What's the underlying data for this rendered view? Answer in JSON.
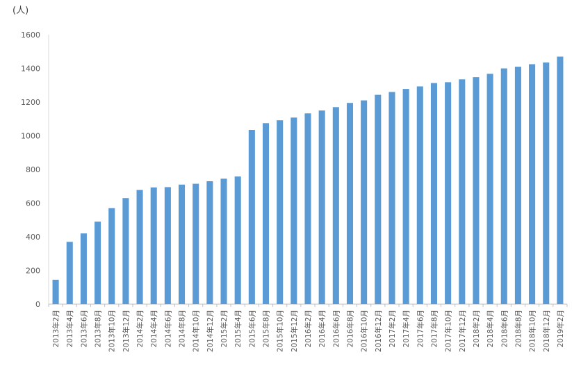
{
  "chart_data": {
    "type": "bar",
    "ylabel": "(人)",
    "ylim": [
      0,
      1600
    ],
    "yticks": [
      "0",
      "200",
      "400",
      "600",
      "800",
      "1000",
      "1200",
      "1400",
      "1600"
    ],
    "grid": false,
    "legend": "none",
    "bar_color": "#5b9bd5",
    "categories": [
      "2013年2月",
      "2013年4月",
      "2013年6月",
      "2013年8月",
      "2013年10月",
      "2013年12月",
      "2014年2月",
      "2014年4月",
      "2014年6月",
      "2014年8月",
      "2014年10月",
      "2014年12月",
      "2015年2月",
      "2015年4月",
      "2015年6月",
      "2015年8月",
      "2015年10月",
      "2015年12月",
      "2016年2月",
      "2016年4月",
      "2016年6月",
      "2016年8月",
      "2016年10月",
      "2016年12月",
      "2017年2月",
      "2017年4月",
      "2017年6月",
      "2017年8月",
      "2017年10月",
      "2017年12月",
      "2018年2月",
      "2018年4月",
      "2018年6月",
      "2018年8月",
      "2018年10月",
      "2018年12月",
      "2019年2月"
    ],
    "values": [
      145,
      370,
      420,
      490,
      570,
      630,
      678,
      693,
      695,
      710,
      715,
      730,
      745,
      758,
      1035,
      1075,
      1092,
      1108,
      1133,
      1150,
      1170,
      1195,
      1210,
      1243,
      1260,
      1278,
      1293,
      1313,
      1318,
      1335,
      1348,
      1368,
      1400,
      1410,
      1425,
      1435,
      1470
    ]
  }
}
